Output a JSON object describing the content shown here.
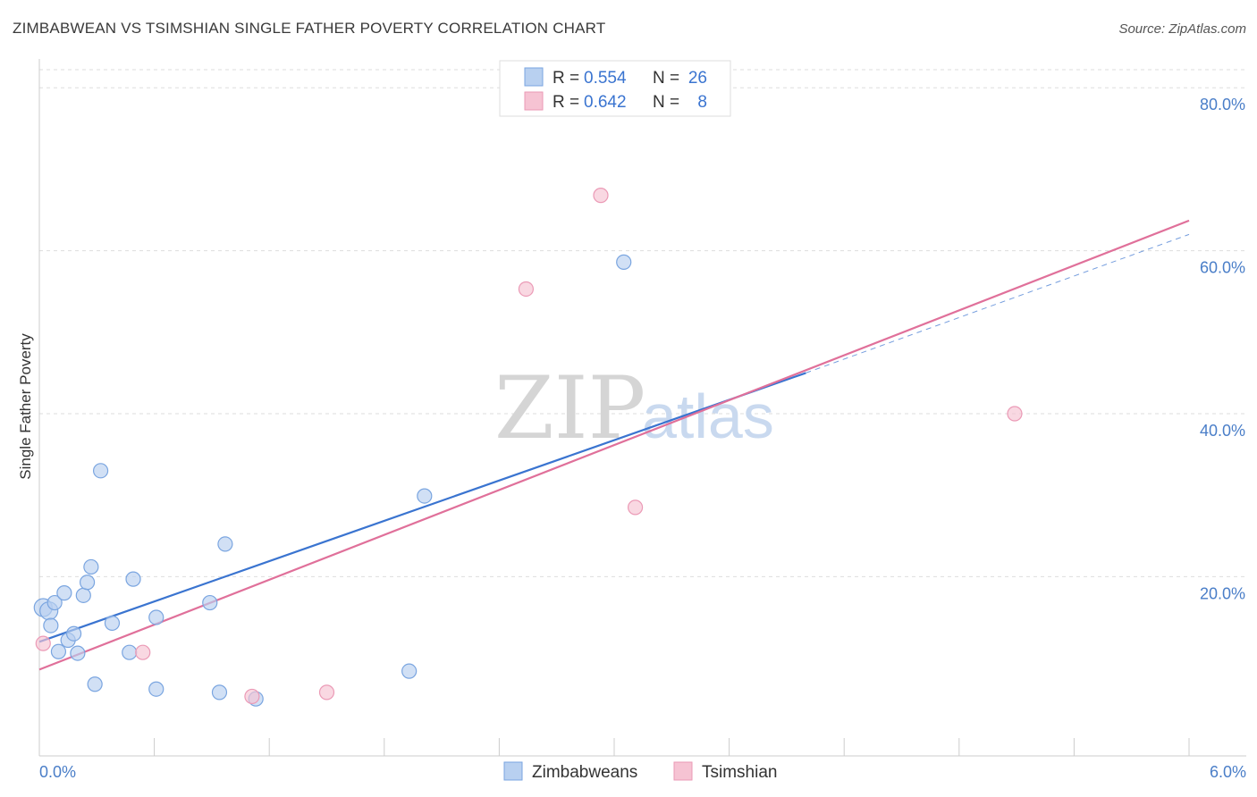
{
  "title": "ZIMBABWEAN VS TSIMSHIAN SINGLE FATHER POVERTY CORRELATION CHART",
  "source": "Source: ZipAtlas.com",
  "watermark": {
    "zip": "ZIP",
    "atlas": "atlas"
  },
  "colors": {
    "blue": "#3a74d0",
    "blue_fill": "#b8d0f0",
    "pink": "#e0709a",
    "pink_fill": "#f6c3d3",
    "grid": "#dddddd"
  },
  "chart_data": {
    "type": "scatter",
    "title": "ZIMBABWEAN VS TSIMSHIAN SINGLE FATHER POVERTY CORRELATION CHART",
    "xlabel": "",
    "ylabel": "Single Father Poverty",
    "xlim": [
      0,
      6
    ],
    "ylim": [
      -2,
      82
    ],
    "x_tick_labels": [
      "0.0%",
      "6.0%"
    ],
    "y_ticks": [
      20,
      40,
      60,
      80
    ],
    "y_tick_labels": [
      "20.0%",
      "40.0%",
      "60.0%",
      "80.0%"
    ],
    "legend": [
      {
        "r_label": "R = ",
        "r": "0.554",
        "n_label": "N = ",
        "n": "26"
      },
      {
        "r_label": "R = ",
        "r": "0.642",
        "n_label": "N = ",
        "n": "8"
      }
    ],
    "series": [
      {
        "name": "Zimbabweans",
        "color": "#3a74d0",
        "points": [
          {
            "x": 0.02,
            "y": 16.2
          },
          {
            "x": 0.05,
            "y": 15.8
          },
          {
            "x": 0.06,
            "y": 14.0
          },
          {
            "x": 0.08,
            "y": 16.8
          },
          {
            "x": 0.1,
            "y": 10.8
          },
          {
            "x": 0.13,
            "y": 18.0
          },
          {
            "x": 0.15,
            "y": 12.2
          },
          {
            "x": 0.18,
            "y": 13.0
          },
          {
            "x": 0.2,
            "y": 10.6
          },
          {
            "x": 0.23,
            "y": 17.7
          },
          {
            "x": 0.25,
            "y": 19.3
          },
          {
            "x": 0.27,
            "y": 21.2
          },
          {
            "x": 0.29,
            "y": 6.8
          },
          {
            "x": 0.32,
            "y": 33.0
          },
          {
            "x": 0.38,
            "y": 14.3
          },
          {
            "x": 0.47,
            "y": 10.7
          },
          {
            "x": 0.49,
            "y": 19.7
          },
          {
            "x": 0.61,
            "y": 15.0
          },
          {
            "x": 0.61,
            "y": 6.2
          },
          {
            "x": 0.89,
            "y": 16.8
          },
          {
            "x": 0.94,
            "y": 5.8
          },
          {
            "x": 0.97,
            "y": 24.0
          },
          {
            "x": 1.13,
            "y": 5.0
          },
          {
            "x": 1.93,
            "y": 8.4
          },
          {
            "x": 2.01,
            "y": 29.9
          },
          {
            "x": 3.05,
            "y": 58.6
          }
        ],
        "trend": {
          "x": [
            0,
            4.0
          ],
          "y": [
            12.0,
            45.0
          ]
        }
      },
      {
        "name": "Tsimshian",
        "color": "#e0709a",
        "points": [
          {
            "x": 0.02,
            "y": 11.8
          },
          {
            "x": 0.54,
            "y": 10.7
          },
          {
            "x": 1.11,
            "y": 5.3
          },
          {
            "x": 1.5,
            "y": 5.8
          },
          {
            "x": 2.54,
            "y": 55.3
          },
          {
            "x": 2.93,
            "y": 66.8
          },
          {
            "x": 3.11,
            "y": 28.5
          },
          {
            "x": 5.09,
            "y": 40.0
          }
        ],
        "trend": {
          "x": [
            0,
            6.0
          ],
          "y": [
            8.6,
            63.7
          ]
        }
      }
    ],
    "dashed_extension": {
      "x": [
        4.0,
        6.0
      ],
      "y": [
        45.0,
        62.0
      ]
    }
  }
}
